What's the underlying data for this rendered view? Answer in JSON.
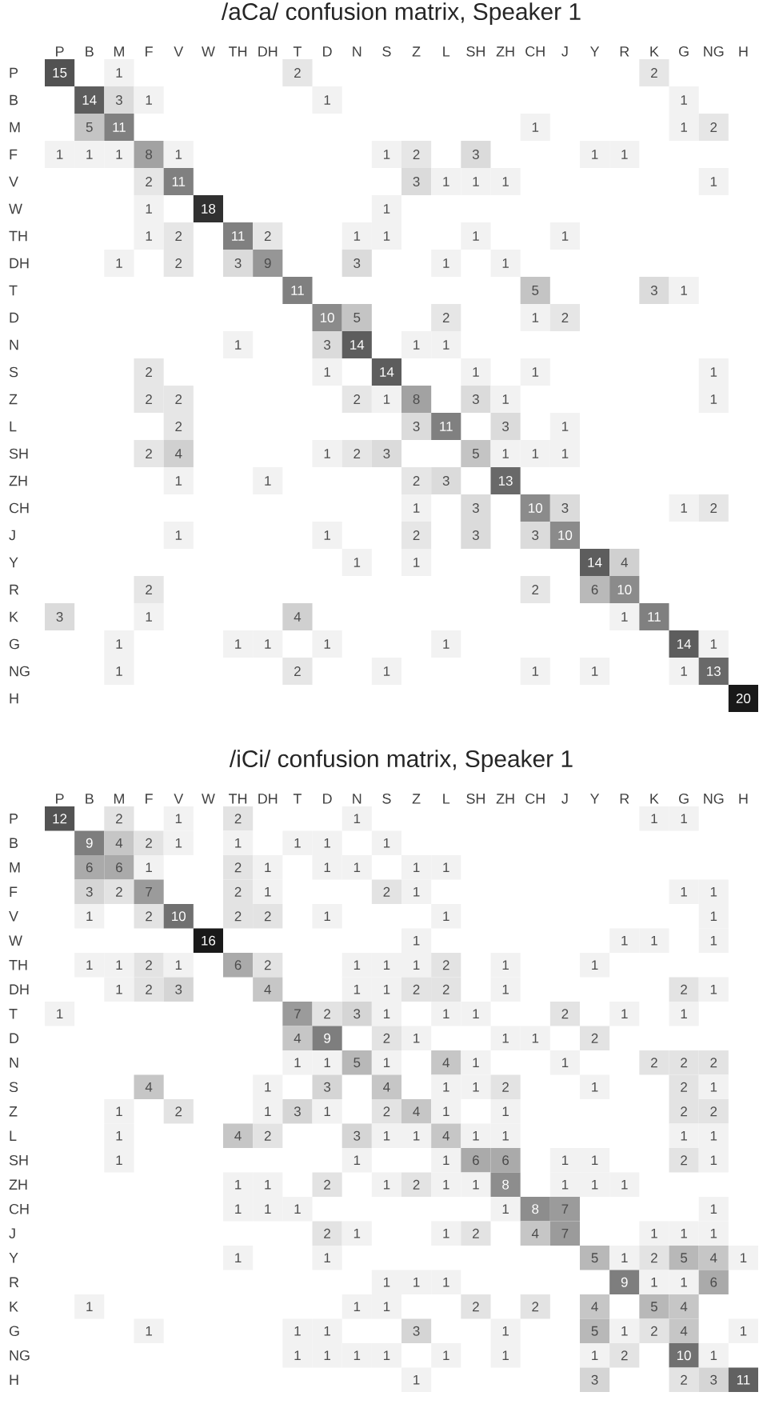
{
  "chart_data": [
    {
      "type": "heatmap",
      "title": "/aCa/ confusion matrix, Speaker 1",
      "data_labels": true,
      "categories": [
        "P",
        "B",
        "M",
        "F",
        "V",
        "W",
        "TH",
        "DH",
        "T",
        "D",
        "N",
        "S",
        "Z",
        "L",
        "SH",
        "ZH",
        "CH",
        "J",
        "Y",
        "R",
        "K",
        "G",
        "NG",
        "H"
      ],
      "y_categories": [
        "P",
        "B",
        "M",
        "F",
        "V",
        "W",
        "TH",
        "DH",
        "T",
        "D",
        "N",
        "S",
        "Z",
        "L",
        "SH",
        "ZH",
        "CH",
        "J",
        "Y",
        "R",
        "K",
        "G",
        "NG",
        "H"
      ],
      "cells": [
        [
          15,
          null,
          1,
          null,
          null,
          null,
          null,
          null,
          2,
          null,
          null,
          null,
          null,
          null,
          null,
          null,
          null,
          null,
          null,
          null,
          2,
          null,
          null,
          null
        ],
        [
          null,
          14,
          3,
          1,
          null,
          null,
          null,
          null,
          null,
          1,
          null,
          null,
          null,
          null,
          null,
          null,
          null,
          null,
          null,
          null,
          null,
          1,
          null,
          null
        ],
        [
          null,
          5,
          11,
          null,
          null,
          null,
          null,
          null,
          null,
          null,
          null,
          null,
          null,
          null,
          null,
          null,
          1,
          null,
          null,
          null,
          null,
          1,
          2,
          null
        ],
        [
          1,
          1,
          1,
          8,
          1,
          null,
          null,
          null,
          null,
          null,
          null,
          1,
          2,
          null,
          3,
          null,
          null,
          null,
          1,
          1,
          null,
          null,
          null,
          null
        ],
        [
          null,
          null,
          null,
          2,
          11,
          null,
          null,
          null,
          null,
          null,
          null,
          null,
          3,
          1,
          1,
          1,
          null,
          null,
          null,
          null,
          null,
          null,
          1,
          null
        ],
        [
          null,
          null,
          null,
          1,
          null,
          18,
          null,
          null,
          null,
          null,
          null,
          1,
          null,
          null,
          null,
          null,
          null,
          null,
          null,
          null,
          null,
          null,
          null,
          null
        ],
        [
          null,
          null,
          null,
          1,
          2,
          null,
          11,
          2,
          null,
          null,
          1,
          1,
          null,
          null,
          1,
          null,
          null,
          1,
          null,
          null,
          null,
          null,
          null,
          null
        ],
        [
          null,
          null,
          1,
          null,
          2,
          null,
          3,
          9,
          null,
          null,
          3,
          null,
          null,
          1,
          null,
          1,
          null,
          null,
          null,
          null,
          null,
          null,
          null,
          null
        ],
        [
          null,
          null,
          null,
          null,
          null,
          null,
          null,
          null,
          11,
          null,
          null,
          null,
          null,
          null,
          null,
          null,
          5,
          null,
          null,
          null,
          3,
          1,
          null,
          null
        ],
        [
          null,
          null,
          null,
          null,
          null,
          null,
          null,
          null,
          null,
          10,
          5,
          null,
          null,
          2,
          null,
          null,
          1,
          2,
          null,
          null,
          null,
          null,
          null,
          null
        ],
        [
          null,
          null,
          null,
          null,
          null,
          null,
          1,
          null,
          null,
          3,
          14,
          null,
          1,
          1,
          null,
          null,
          null,
          null,
          null,
          null,
          null,
          null,
          null,
          null
        ],
        [
          null,
          null,
          null,
          2,
          null,
          null,
          null,
          null,
          null,
          1,
          null,
          14,
          null,
          null,
          1,
          null,
          1,
          null,
          null,
          null,
          null,
          null,
          1,
          null
        ],
        [
          null,
          null,
          null,
          2,
          2,
          null,
          null,
          null,
          null,
          null,
          2,
          1,
          8,
          null,
          3,
          1,
          null,
          null,
          null,
          null,
          null,
          null,
          1,
          null
        ],
        [
          null,
          null,
          null,
          null,
          2,
          null,
          null,
          null,
          null,
          null,
          null,
          null,
          3,
          11,
          null,
          3,
          null,
          1,
          null,
          null,
          null,
          null,
          null,
          null
        ],
        [
          null,
          null,
          null,
          2,
          4,
          null,
          null,
          null,
          null,
          1,
          2,
          3,
          null,
          null,
          5,
          1,
          1,
          1,
          null,
          null,
          null,
          null,
          null,
          null
        ],
        [
          null,
          null,
          null,
          null,
          1,
          null,
          null,
          1,
          null,
          null,
          null,
          null,
          2,
          3,
          null,
          13,
          null,
          null,
          null,
          null,
          null,
          null,
          null,
          null
        ],
        [
          null,
          null,
          null,
          null,
          null,
          null,
          null,
          null,
          null,
          null,
          null,
          null,
          1,
          null,
          3,
          null,
          10,
          3,
          null,
          null,
          null,
          1,
          2,
          null
        ],
        [
          null,
          null,
          null,
          null,
          1,
          null,
          null,
          null,
          null,
          1,
          null,
          null,
          2,
          null,
          3,
          null,
          3,
          10,
          null,
          null,
          null,
          null,
          null,
          null
        ],
        [
          null,
          null,
          null,
          null,
          null,
          null,
          null,
          null,
          null,
          null,
          1,
          null,
          1,
          null,
          null,
          null,
          null,
          null,
          14,
          4,
          null,
          null,
          null,
          null
        ],
        [
          null,
          null,
          null,
          2,
          null,
          null,
          null,
          null,
          null,
          null,
          null,
          null,
          null,
          null,
          null,
          null,
          2,
          null,
          6,
          10,
          null,
          null,
          null,
          null
        ],
        [
          3,
          null,
          null,
          1,
          null,
          null,
          null,
          null,
          4,
          null,
          null,
          null,
          null,
          null,
          null,
          null,
          null,
          null,
          null,
          1,
          11,
          null,
          null,
          null
        ],
        [
          null,
          null,
          1,
          null,
          null,
          null,
          1,
          1,
          null,
          1,
          null,
          null,
          null,
          1,
          null,
          null,
          null,
          null,
          null,
          null,
          null,
          14,
          1,
          null
        ],
        [
          null,
          null,
          1,
          null,
          null,
          null,
          null,
          null,
          2,
          null,
          null,
          1,
          null,
          null,
          null,
          null,
          1,
          null,
          1,
          null,
          null,
          1,
          13,
          null
        ],
        [
          null,
          null,
          null,
          null,
          null,
          null,
          null,
          null,
          null,
          null,
          null,
          null,
          null,
          null,
          null,
          null,
          null,
          null,
          null,
          null,
          null,
          null,
          null,
          20
        ]
      ]
    },
    {
      "type": "heatmap",
      "title": "/iCi/ confusion matrix, Speaker 1",
      "data_labels": true,
      "categories": [
        "P",
        "B",
        "M",
        "F",
        "V",
        "W",
        "TH",
        "DH",
        "T",
        "D",
        "N",
        "S",
        "Z",
        "L",
        "SH",
        "ZH",
        "CH",
        "J",
        "Y",
        "R",
        "K",
        "G",
        "NG",
        "H"
      ],
      "y_categories": [
        "P",
        "B",
        "M",
        "F",
        "V",
        "W",
        "TH",
        "DH",
        "T",
        "D",
        "N",
        "S",
        "Z",
        "L",
        "SH",
        "ZH",
        "CH",
        "J",
        "Y",
        "R",
        "K",
        "G",
        "NG",
        "H"
      ],
      "cells": [
        [
          12,
          null,
          2,
          null,
          1,
          null,
          2,
          null,
          null,
          null,
          1,
          null,
          null,
          null,
          null,
          null,
          null,
          null,
          null,
          null,
          1,
          1,
          null,
          null
        ],
        [
          null,
          9,
          4,
          2,
          1,
          null,
          1,
          null,
          1,
          1,
          null,
          1,
          null,
          null,
          null,
          null,
          null,
          null,
          null,
          null,
          null,
          null,
          null,
          null
        ],
        [
          null,
          6,
          6,
          1,
          null,
          null,
          2,
          1,
          null,
          1,
          1,
          null,
          1,
          1,
          null,
          null,
          null,
          null,
          null,
          null,
          null,
          null,
          null,
          null
        ],
        [
          null,
          3,
          2,
          7,
          null,
          null,
          2,
          1,
          null,
          null,
          null,
          2,
          1,
          null,
          null,
          null,
          null,
          null,
          null,
          null,
          null,
          1,
          1,
          null
        ],
        [
          null,
          1,
          null,
          2,
          10,
          null,
          2,
          2,
          null,
          1,
          null,
          null,
          null,
          1,
          null,
          null,
          null,
          null,
          null,
          null,
          null,
          null,
          1,
          null
        ],
        [
          null,
          null,
          null,
          null,
          null,
          16,
          null,
          null,
          null,
          null,
          null,
          null,
          1,
          null,
          null,
          null,
          null,
          null,
          null,
          1,
          1,
          null,
          1,
          null
        ],
        [
          null,
          1,
          1,
          2,
          1,
          null,
          6,
          2,
          null,
          null,
          1,
          1,
          1,
          2,
          null,
          1,
          null,
          null,
          1,
          null,
          null,
          null,
          null,
          null
        ],
        [
          null,
          null,
          1,
          2,
          3,
          null,
          null,
          4,
          null,
          null,
          1,
          1,
          2,
          2,
          null,
          1,
          null,
          null,
          null,
          null,
          null,
          2,
          1,
          null
        ],
        [
          1,
          null,
          null,
          null,
          null,
          null,
          null,
          null,
          7,
          2,
          3,
          1,
          null,
          1,
          1,
          null,
          null,
          2,
          null,
          1,
          null,
          1,
          null,
          null
        ],
        [
          null,
          null,
          null,
          null,
          null,
          null,
          null,
          null,
          4,
          9,
          null,
          2,
          1,
          null,
          null,
          1,
          1,
          null,
          2,
          null,
          null,
          null,
          null,
          null
        ],
        [
          null,
          null,
          null,
          null,
          null,
          null,
          null,
          null,
          1,
          1,
          5,
          1,
          null,
          4,
          1,
          null,
          null,
          1,
          null,
          null,
          2,
          2,
          2,
          null
        ],
        [
          null,
          null,
          null,
          4,
          null,
          null,
          null,
          1,
          null,
          3,
          null,
          4,
          null,
          1,
          1,
          2,
          null,
          null,
          1,
          null,
          null,
          2,
          1,
          null
        ],
        [
          null,
          null,
          1,
          null,
          2,
          null,
          null,
          1,
          3,
          1,
          null,
          2,
          4,
          1,
          null,
          1,
          null,
          null,
          null,
          null,
          null,
          2,
          2,
          null
        ],
        [
          null,
          null,
          1,
          null,
          null,
          null,
          4,
          2,
          null,
          null,
          3,
          1,
          1,
          4,
          1,
          1,
          null,
          null,
          null,
          null,
          null,
          1,
          1,
          null
        ],
        [
          null,
          null,
          1,
          null,
          null,
          null,
          null,
          null,
          null,
          null,
          1,
          null,
          null,
          1,
          6,
          6,
          null,
          1,
          1,
          null,
          null,
          2,
          1,
          null
        ],
        [
          null,
          null,
          null,
          null,
          null,
          null,
          1,
          1,
          null,
          2,
          null,
          1,
          2,
          1,
          1,
          8,
          null,
          1,
          1,
          1,
          null,
          null,
          null,
          null
        ],
        [
          null,
          null,
          null,
          null,
          null,
          null,
          1,
          1,
          1,
          null,
          null,
          null,
          null,
          null,
          null,
          1,
          8,
          7,
          null,
          null,
          null,
          null,
          1,
          null
        ],
        [
          null,
          null,
          null,
          null,
          null,
          null,
          null,
          null,
          null,
          2,
          1,
          null,
          null,
          1,
          2,
          null,
          4,
          7,
          null,
          null,
          1,
          1,
          1,
          null
        ],
        [
          null,
          null,
          null,
          null,
          null,
          null,
          1,
          null,
          null,
          1,
          null,
          null,
          null,
          null,
          null,
          null,
          null,
          null,
          5,
          1,
          2,
          5,
          4,
          1
        ],
        [
          null,
          null,
          null,
          null,
          null,
          null,
          null,
          null,
          null,
          null,
          null,
          1,
          1,
          1,
          null,
          null,
          null,
          null,
          null,
          9,
          1,
          1,
          6,
          null
        ],
        [
          null,
          1,
          null,
          null,
          null,
          null,
          null,
          null,
          null,
          null,
          1,
          1,
          null,
          null,
          2,
          null,
          2,
          null,
          4,
          null,
          5,
          4,
          null,
          null
        ],
        [
          null,
          null,
          null,
          1,
          null,
          null,
          null,
          null,
          1,
          1,
          null,
          null,
          3,
          null,
          null,
          1,
          null,
          null,
          5,
          1,
          2,
          4,
          null,
          1
        ],
        [
          null,
          null,
          null,
          null,
          null,
          null,
          null,
          null,
          1,
          1,
          1,
          1,
          null,
          1,
          null,
          1,
          null,
          null,
          1,
          2,
          null,
          10,
          1,
          null
        ],
        [
          null,
          null,
          null,
          null,
          null,
          null,
          null,
          null,
          null,
          null,
          null,
          null,
          1,
          null,
          null,
          null,
          null,
          null,
          3,
          null,
          null,
          2,
          3,
          11
        ]
      ]
    }
  ]
}
